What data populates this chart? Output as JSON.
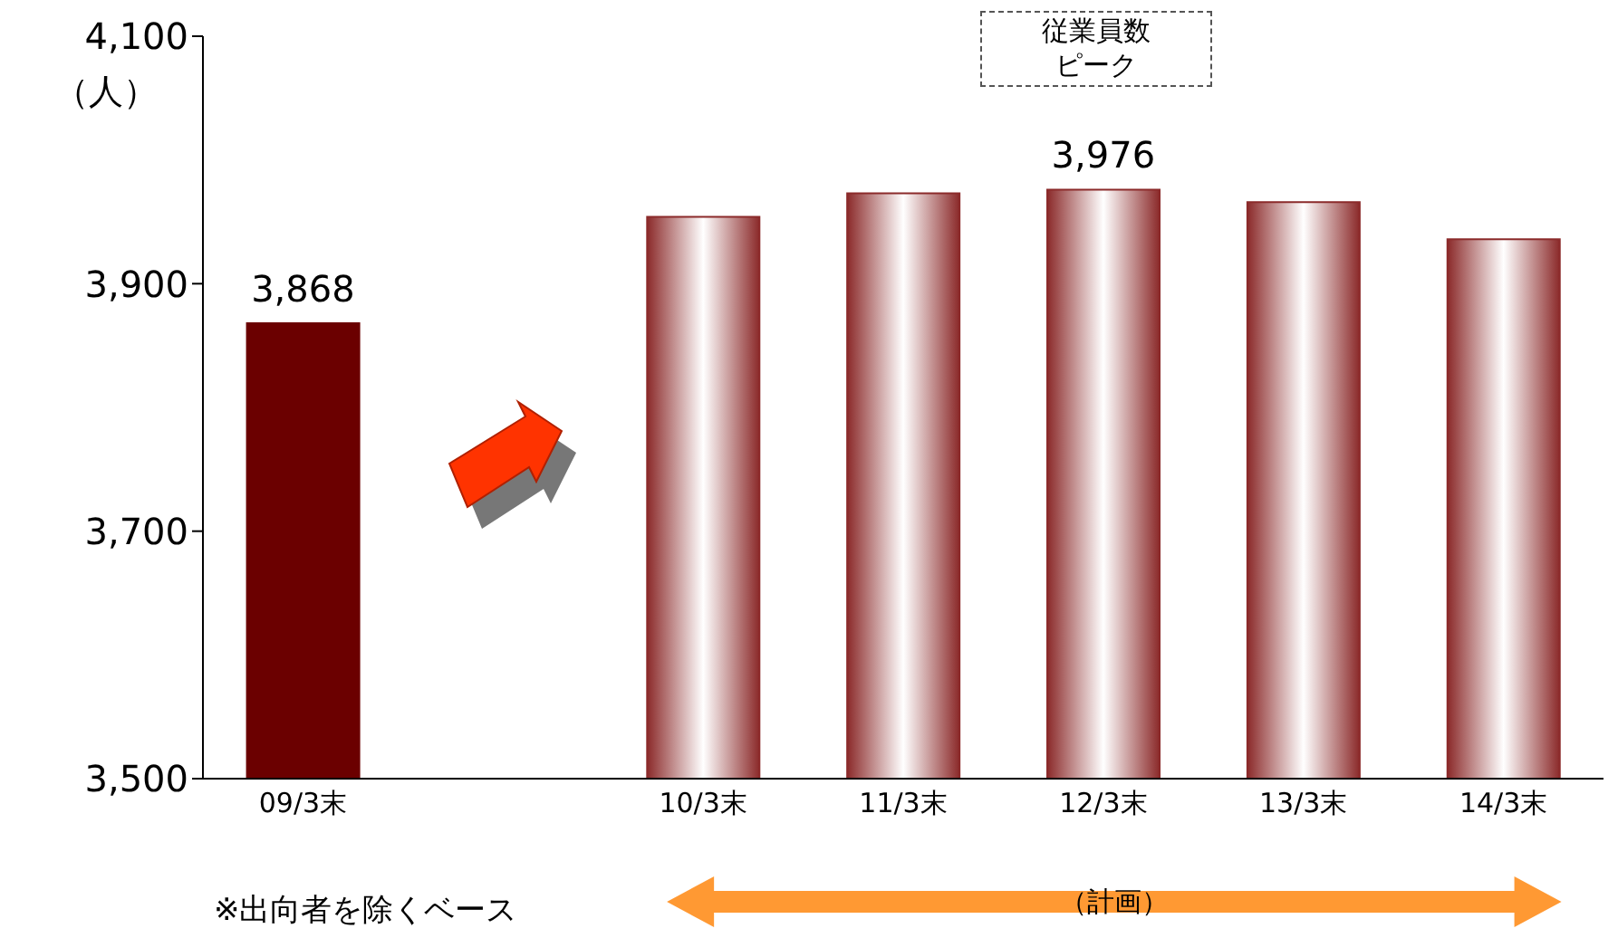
{
  "chart_data": {
    "type": "bar",
    "ylabel": "（人）",
    "categories": [
      "09/3末",
      null,
      "10/3末",
      "11/3末",
      "12/3末",
      "13/3末",
      "14/3末"
    ],
    "values": [
      3868,
      null,
      3954,
      3973,
      3976,
      3966,
      3936
    ],
    "colors": [
      "#6b0000",
      null,
      "#8b2a2a",
      "#8b2a2a",
      "#8b2a2a",
      "#8b2a2a",
      "#8b2a2a"
    ],
    "value_labels": [
      "3,868",
      null,
      null,
      null,
      "3,976",
      null,
      null
    ],
    "ylim": [
      3500,
      4100
    ],
    "yticks": [
      {
        "value": 3500,
        "label": "3,500"
      },
      {
        "value": 3700,
        "label": "3,700"
      },
      {
        "value": 3900,
        "label": "3,900"
      },
      {
        "value": 4100,
        "label": "4,100"
      }
    ],
    "grid": false,
    "legend": false,
    "annotations": [
      "従業員数ピーク",
      "（計画）",
      "※出向者を除くベース"
    ]
  }
}
